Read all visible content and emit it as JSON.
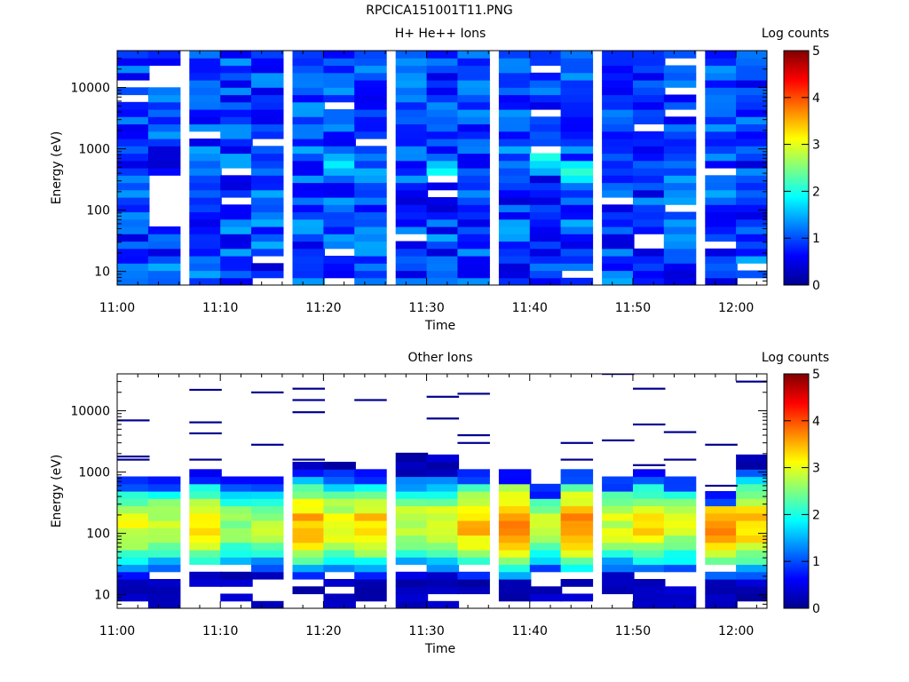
{
  "page": {
    "title": "RPCICA151001T11.PNG"
  },
  "chart_data": [
    {
      "type": "heatmap",
      "title": "H+ He++ Ions",
      "xlabel": "Time",
      "ylabel": "Energy (eV)",
      "x_ticks": [
        "11:00",
        "11:10",
        "11:20",
        "11:30",
        "11:40",
        "11:50",
        "12:00"
      ],
      "x_range": [
        "11:00",
        "12:03"
      ],
      "y_ticks": [
        "10",
        "100",
        "1000",
        "10000"
      ],
      "y_range": [
        6,
        40000
      ],
      "y_scale": "log",
      "colorbar": {
        "label": "Log counts",
        "ticks": [
          "0",
          "1",
          "2",
          "3",
          "4",
          "5"
        ],
        "range": [
          0,
          5
        ]
      },
      "time_columns": [
        "11:00",
        "11:03",
        "11:07",
        "11:10",
        "11:13",
        "11:17",
        "11:20",
        "11:23",
        "11:27",
        "11:30",
        "11:33",
        "11:37",
        "11:40",
        "11:43",
        "11:47",
        "11:50",
        "11:53",
        "11:57",
        "12:00"
      ],
      "description_level": 1.1,
      "gaps": [
        [
          1,
          8
        ],
        [
          1,
          9
        ],
        [
          1,
          10
        ],
        [
          1,
          11
        ],
        [
          1,
          12
        ],
        [
          1,
          13
        ],
        [
          1,
          14
        ],
        [
          1,
          27
        ],
        [
          1,
          28
        ],
        [
          1,
          29
        ]
      ],
      "hot_cells": [
        [
          6,
          16,
          1.8
        ],
        [
          9,
          15,
          1.9
        ],
        [
          12,
          17,
          2.0
        ],
        [
          13,
          15,
          2.1
        ]
      ]
    },
    {
      "type": "heatmap",
      "title": "Other Ions",
      "xlabel": "Time",
      "ylabel": "Energy (eV)",
      "x_ticks": [
        "11:00",
        "11:10",
        "11:20",
        "11:30",
        "11:40",
        "11:50",
        "12:00"
      ],
      "x_range": [
        "11:00",
        "12:03"
      ],
      "y_ticks": [
        "10",
        "100",
        "1000",
        "10000"
      ],
      "y_range": [
        6,
        40000
      ],
      "y_scale": "log",
      "colorbar": {
        "label": "Log counts",
        "ticks": [
          "0",
          "1",
          "2",
          "3",
          "4",
          "5"
        ],
        "range": [
          0,
          5
        ]
      },
      "time_columns": [
        "11:00",
        "11:03",
        "11:07",
        "11:10",
        "11:13",
        "11:17",
        "11:20",
        "11:23",
        "11:27",
        "11:30",
        "11:33",
        "11:37",
        "11:40",
        "11:43",
        "11:47",
        "11:50",
        "11:53",
        "11:57",
        "12:00"
      ],
      "column_top_ev": [
        900,
        850,
        1000,
        800,
        900,
        1300,
        1400,
        1200,
        1800,
        1800,
        1200,
        1000,
        600,
        1000,
        900,
        1000,
        900,
        450,
        1800
      ],
      "column_peak": [
        3.0,
        2.9,
        3.1,
        2.6,
        2.7,
        3.5,
        3.1,
        3.4,
        2.9,
        3.0,
        3.4,
        3.8,
        2.8,
        3.7,
        2.9,
        3.2,
        2.9,
        3.7,
        3.4
      ],
      "peak_energy_ev": 130,
      "isolated_counts": [
        [
          0,
          7000
        ],
        [
          0,
          1800
        ],
        [
          0,
          1600
        ],
        [
          2,
          22000
        ],
        [
          2,
          6500
        ],
        [
          2,
          4300
        ],
        [
          2,
          1600
        ],
        [
          4,
          20000
        ],
        [
          4,
          2800
        ],
        [
          5,
          23000
        ],
        [
          5,
          15000
        ],
        [
          5,
          9500
        ],
        [
          5,
          1600
        ],
        [
          7,
          15000
        ],
        [
          8,
          2000
        ],
        [
          9,
          17000
        ],
        [
          9,
          7500
        ],
        [
          10,
          19000
        ],
        [
          10,
          4000
        ],
        [
          10,
          3000
        ],
        [
          13,
          3000
        ],
        [
          13,
          1600
        ],
        [
          14,
          40000
        ],
        [
          14,
          3300
        ],
        [
          15,
          23000
        ],
        [
          15,
          6000
        ],
        [
          15,
          1300
        ],
        [
          16,
          4500
        ],
        [
          16,
          1600
        ],
        [
          17,
          2800
        ],
        [
          17,
          600
        ],
        [
          18,
          30000
        ]
      ]
    }
  ]
}
